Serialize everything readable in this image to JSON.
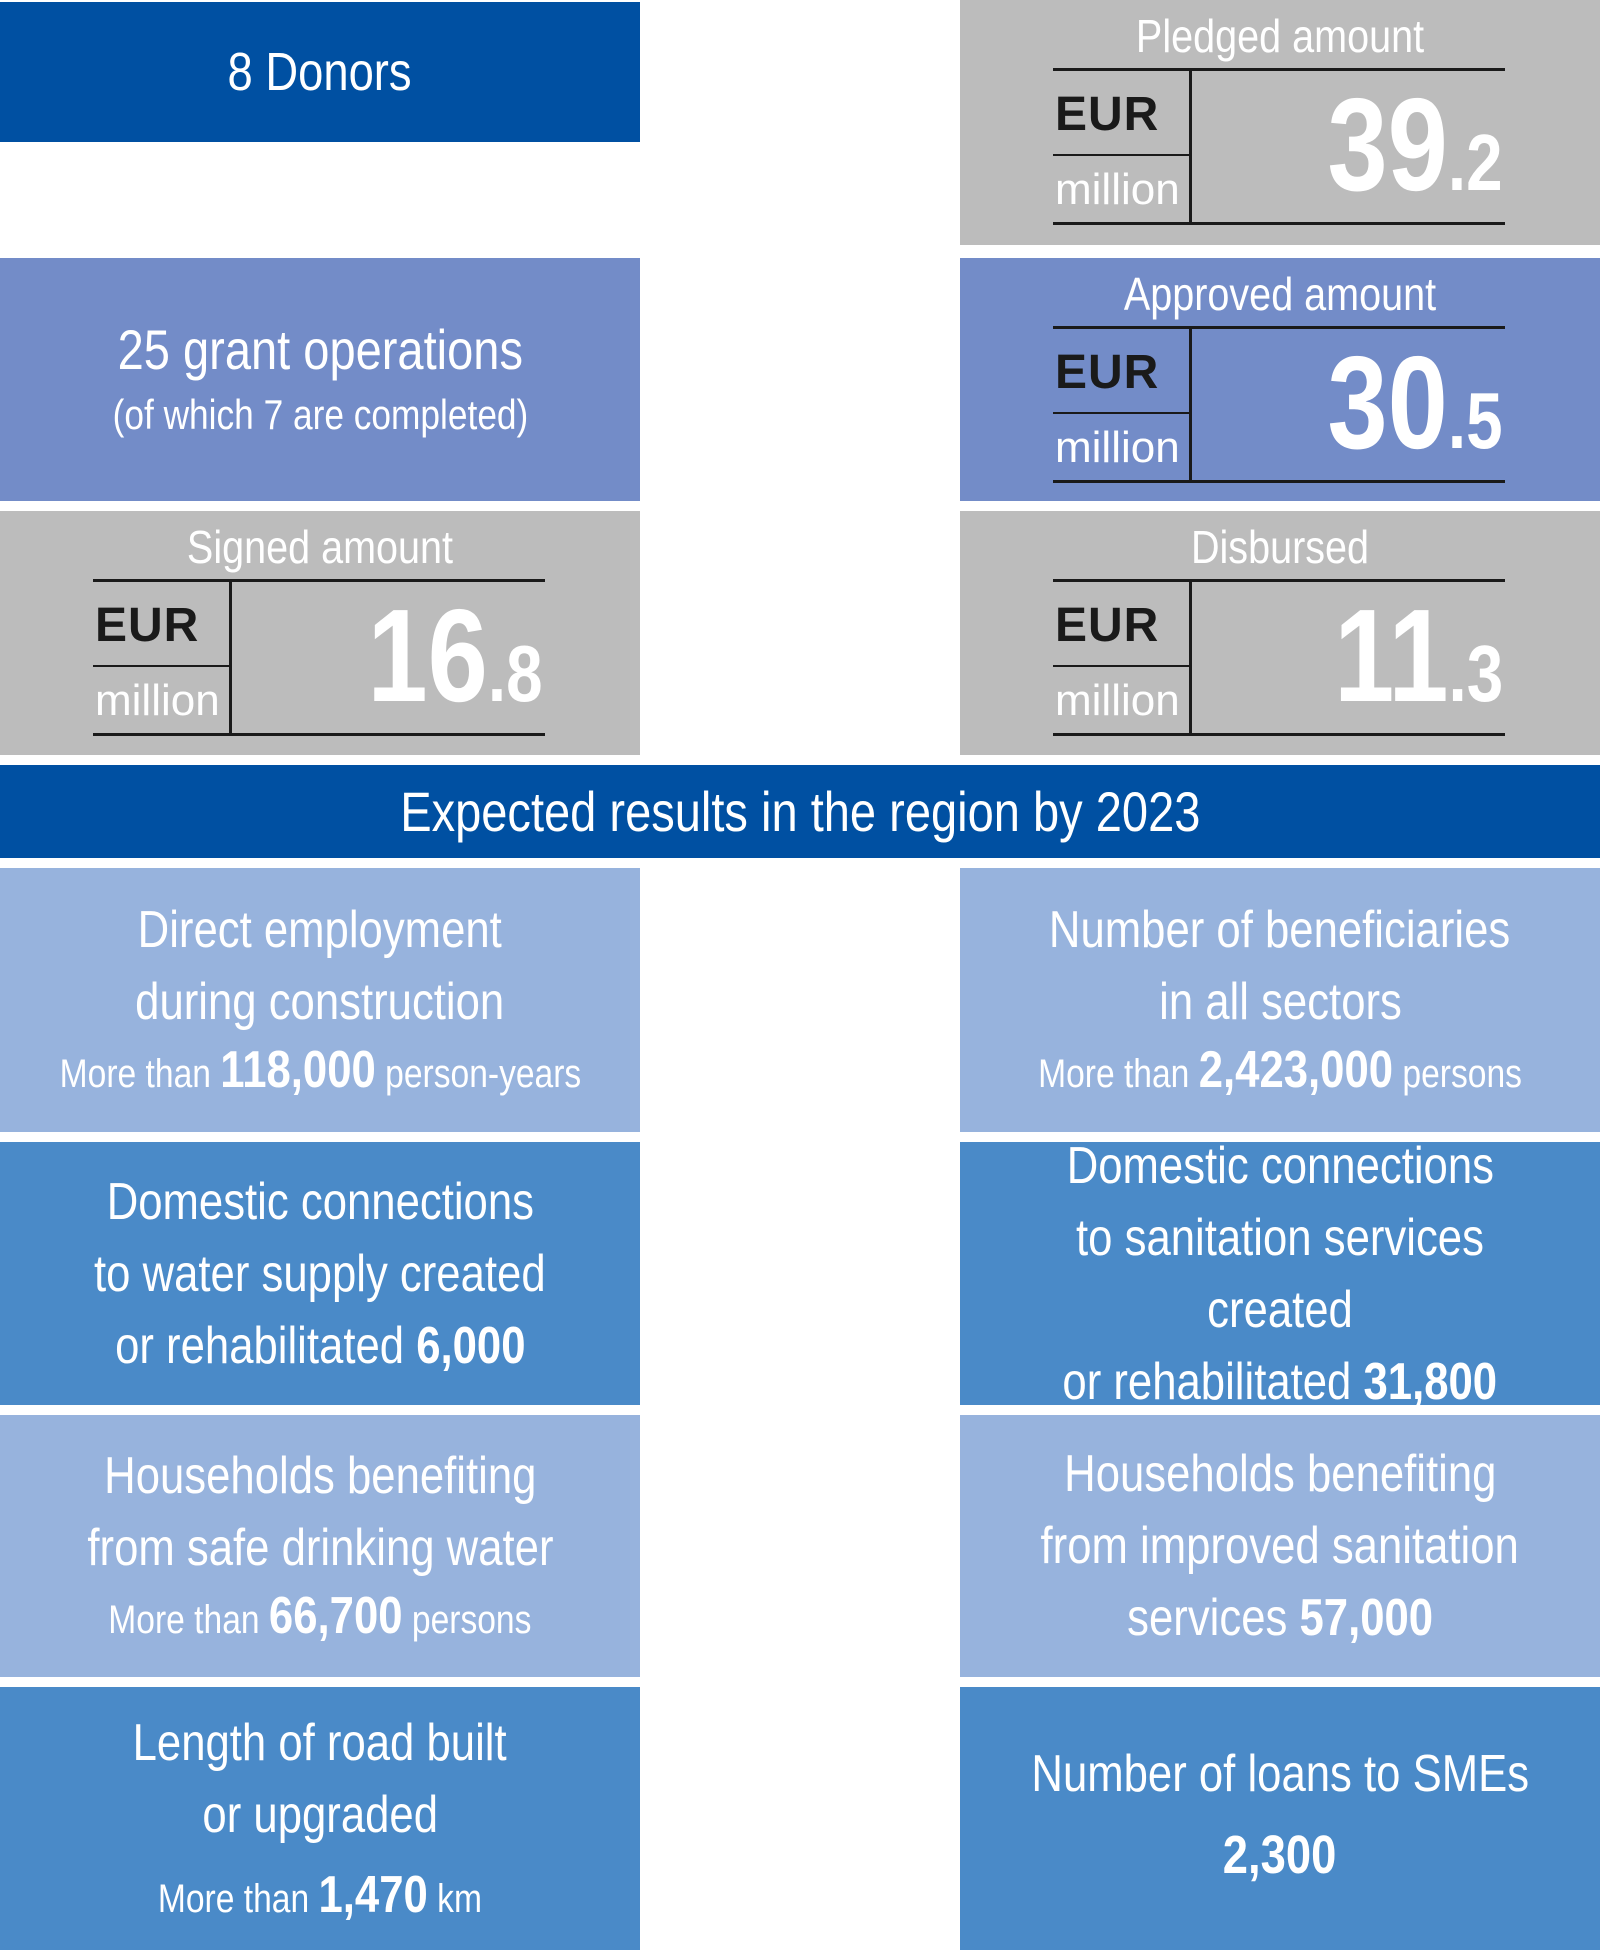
{
  "top": {
    "donors": "8 Donors",
    "grant_operations": "25 grant operations",
    "grant_operations_note": "(of which 7 are completed)"
  },
  "amounts": {
    "currency": "EUR",
    "unit": "million",
    "pledged": {
      "label": "Pledged amount",
      "int": "39",
      "dec": ".2"
    },
    "approved": {
      "label": "Approved amount",
      "int": "30",
      "dec": ".5"
    },
    "signed": {
      "label": "Signed amount",
      "int": "16",
      "dec": ".8"
    },
    "disbursed": {
      "label": "Disbursed",
      "int": "11",
      "dec": ".3"
    }
  },
  "results_header": "Expected results in the region by 2023",
  "results": {
    "employment": {
      "line1": "Direct employment",
      "line2": "during construction",
      "prefix": "More than",
      "value": "118,000",
      "suffix": "person-years"
    },
    "beneficiaries": {
      "line1": "Number of beneficiaries",
      "line2": "in all sectors",
      "prefix": "More than",
      "value": "2,423,000",
      "suffix": "persons"
    },
    "water_connections": {
      "line1": "Domestic connections",
      "line2": "to water supply created",
      "line3": "or rehabilitated",
      "value": "6,000"
    },
    "sanitation_connections": {
      "line1": "Domestic connections",
      "line2": "to sanitation services created",
      "line3": "or rehabilitated",
      "value": "31,800"
    },
    "drinking_water": {
      "line1": "Households benefiting",
      "line2": "from safe drinking water",
      "prefix": "More than",
      "value": "66,700",
      "suffix": "persons"
    },
    "sanitation_households": {
      "line1": "Households benefiting",
      "line2": "from improved sanitation",
      "line3": "services",
      "value": "57,000"
    },
    "road": {
      "line1": "Length of road built",
      "line2": "or upgraded",
      "prefix": "More than",
      "value": "1,470",
      "suffix": "km"
    },
    "sme_loans": {
      "line1": "Number of loans to SMEs",
      "value": "2,300"
    }
  },
  "colors": {
    "dark_blue": "#0050a2",
    "medium_blue": "#738cc8",
    "gray": "#bcbcbc",
    "light_blue": "#97b3dd",
    "blue": "#4a8ac8"
  }
}
